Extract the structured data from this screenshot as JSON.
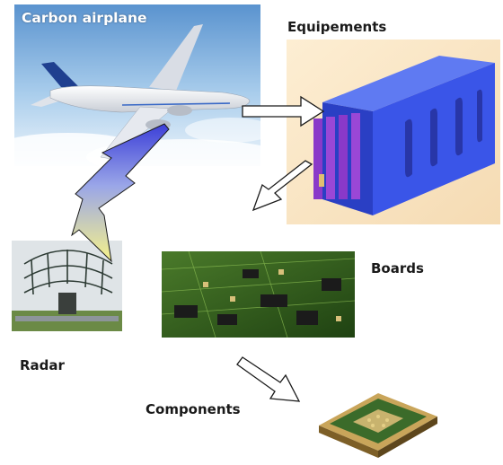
{
  "labels": {
    "airplane": "Carbon airplane",
    "equipment": "Equipements",
    "boards": "Boards",
    "radar": "Radar",
    "components": "Components"
  },
  "colors": {
    "sky": "#9cc4e6",
    "equipment_blue": "#3a55e8",
    "equipment_purple": "#8a39c9",
    "board_green": "#2f5a1c",
    "lightning_yellow": "#f6f28a",
    "lightning_blue": "#3c3fd8"
  }
}
